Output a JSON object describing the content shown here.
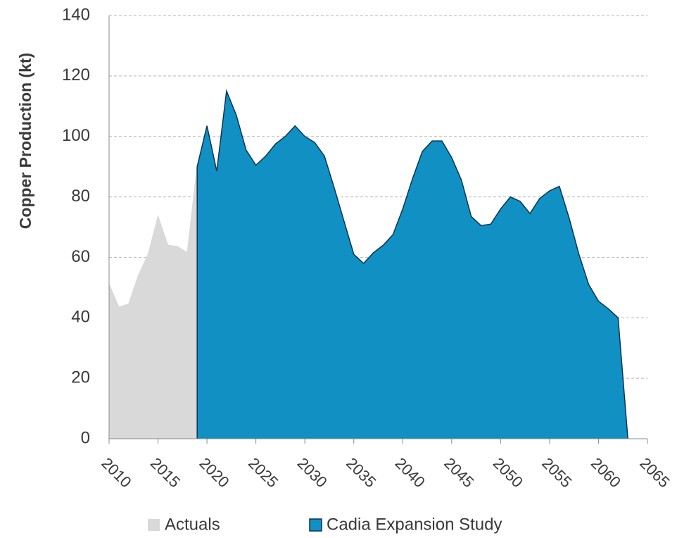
{
  "chart_data": {
    "type": "area",
    "y_label": "Copper Production (kt)",
    "xlim": [
      2010,
      2065
    ],
    "xticks": [
      2010,
      2015,
      2020,
      2025,
      2030,
      2035,
      2040,
      2045,
      2050,
      2055,
      2060,
      2065
    ],
    "ylim": [
      0,
      140
    ],
    "yticks": [
      0,
      20,
      40,
      60,
      80,
      100,
      120,
      140
    ],
    "grid": true,
    "legend": "bottom",
    "series": [
      {
        "name": "Actuals",
        "color": "#d9d9d9",
        "edge": null,
        "x": [
          2010,
          2011,
          2012,
          2013,
          2014,
          2015,
          2016,
          2017,
          2018,
          2019
        ],
        "values": [
          51,
          43.5,
          44.5,
          54,
          61,
          73.5,
          64,
          63.5,
          61.5,
          90
        ]
      },
      {
        "name": "Cadia Expansion Study",
        "color": "#1190c4",
        "edge": "#0b3553",
        "x": [
          2019,
          2020,
          2021,
          2022,
          2023,
          2024,
          2025,
          2026,
          2027,
          2028,
          2029,
          2030,
          2031,
          2032,
          2033,
          2034,
          2035,
          2036,
          2037,
          2038,
          2039,
          2040,
          2041,
          2042,
          2043,
          2044,
          2045,
          2046,
          2047,
          2048,
          2049,
          2050,
          2051,
          2052,
          2053,
          2054,
          2055,
          2056,
          2057,
          2058,
          2059,
          2060,
          2061,
          2062,
          2063
        ],
        "values": [
          90,
          103.5,
          88.5,
          115,
          107,
          95.5,
          90.5,
          93.5,
          97.5,
          100,
          103.5,
          100,
          98,
          93.5,
          83,
          72,
          61,
          58,
          61.5,
          64,
          67.5,
          76,
          86,
          95,
          98.5,
          98.5,
          93,
          85.5,
          73.5,
          70.5,
          71,
          76,
          80,
          78.5,
          74.5,
          79.5,
          82,
          83.5,
          73,
          61,
          51,
          45.5,
          43,
          40,
          0
        ]
      }
    ]
  }
}
